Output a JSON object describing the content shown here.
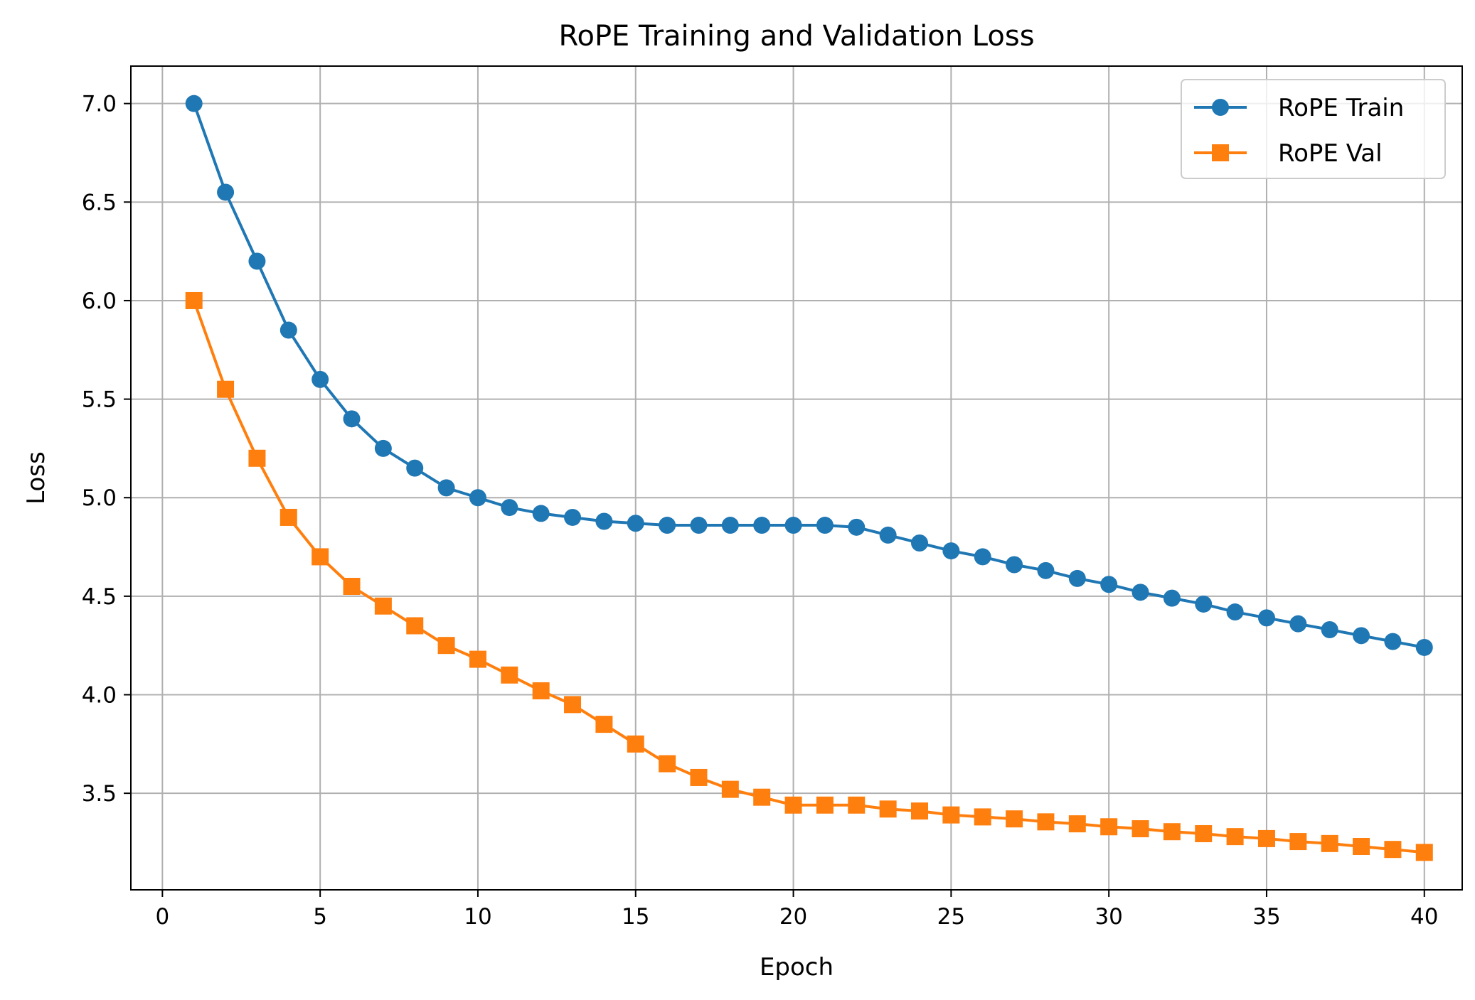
{
  "chart_data": {
    "type": "line",
    "title": "RoPE Training and Validation Loss",
    "xlabel": "Epoch",
    "ylabel": "Loss",
    "xlim": [
      -1,
      41.2
    ],
    "ylim": [
      3.01,
      7.19
    ],
    "xticks": [
      0,
      5,
      10,
      15,
      20,
      25,
      30,
      35,
      40
    ],
    "yticks": [
      3.5,
      4.0,
      4.5,
      5.0,
      5.5,
      6.0,
      6.5,
      7.0
    ],
    "xtick_labels": [
      "0",
      "5",
      "10",
      "15",
      "20",
      "25",
      "30",
      "35",
      "40"
    ],
    "ytick_labels": [
      "3.5",
      "4.0",
      "4.5",
      "5.0",
      "5.5",
      "6.0",
      "6.5",
      "7.0"
    ],
    "grid": true,
    "legend_position": "top-right",
    "x": [
      1,
      2,
      3,
      4,
      5,
      6,
      7,
      8,
      9,
      10,
      11,
      12,
      13,
      14,
      15,
      16,
      17,
      18,
      19,
      20,
      21,
      22,
      23,
      24,
      25,
      26,
      27,
      28,
      29,
      30,
      31,
      32,
      33,
      34,
      35,
      36,
      37,
      38,
      39,
      40
    ],
    "series": [
      {
        "name": "RoPE Train",
        "color": "#1f77b4",
        "marker": "circle",
        "values": [
          7.0,
          6.55,
          6.2,
          5.85,
          5.6,
          5.4,
          5.25,
          5.15,
          5.05,
          5.0,
          4.95,
          4.92,
          4.9,
          4.88,
          4.87,
          4.86,
          4.86,
          4.86,
          4.86,
          4.86,
          4.86,
          4.85,
          4.81,
          4.77,
          4.73,
          4.7,
          4.66,
          4.63,
          4.59,
          4.56,
          4.52,
          4.49,
          4.46,
          4.42,
          4.39,
          4.36,
          4.33,
          4.3,
          4.27,
          4.24
        ]
      },
      {
        "name": "RoPE Val",
        "color": "#ff7f0e",
        "marker": "square",
        "values": [
          6.0,
          5.55,
          5.2,
          4.9,
          4.7,
          4.55,
          4.45,
          4.35,
          4.25,
          4.18,
          4.1,
          4.02,
          3.95,
          3.85,
          3.75,
          3.65,
          3.58,
          3.52,
          3.48,
          3.44,
          3.44,
          3.44,
          3.42,
          3.41,
          3.39,
          3.38,
          3.37,
          3.355,
          3.345,
          3.33,
          3.32,
          3.305,
          3.295,
          3.28,
          3.27,
          3.255,
          3.245,
          3.23,
          3.215,
          3.2
        ]
      }
    ]
  }
}
